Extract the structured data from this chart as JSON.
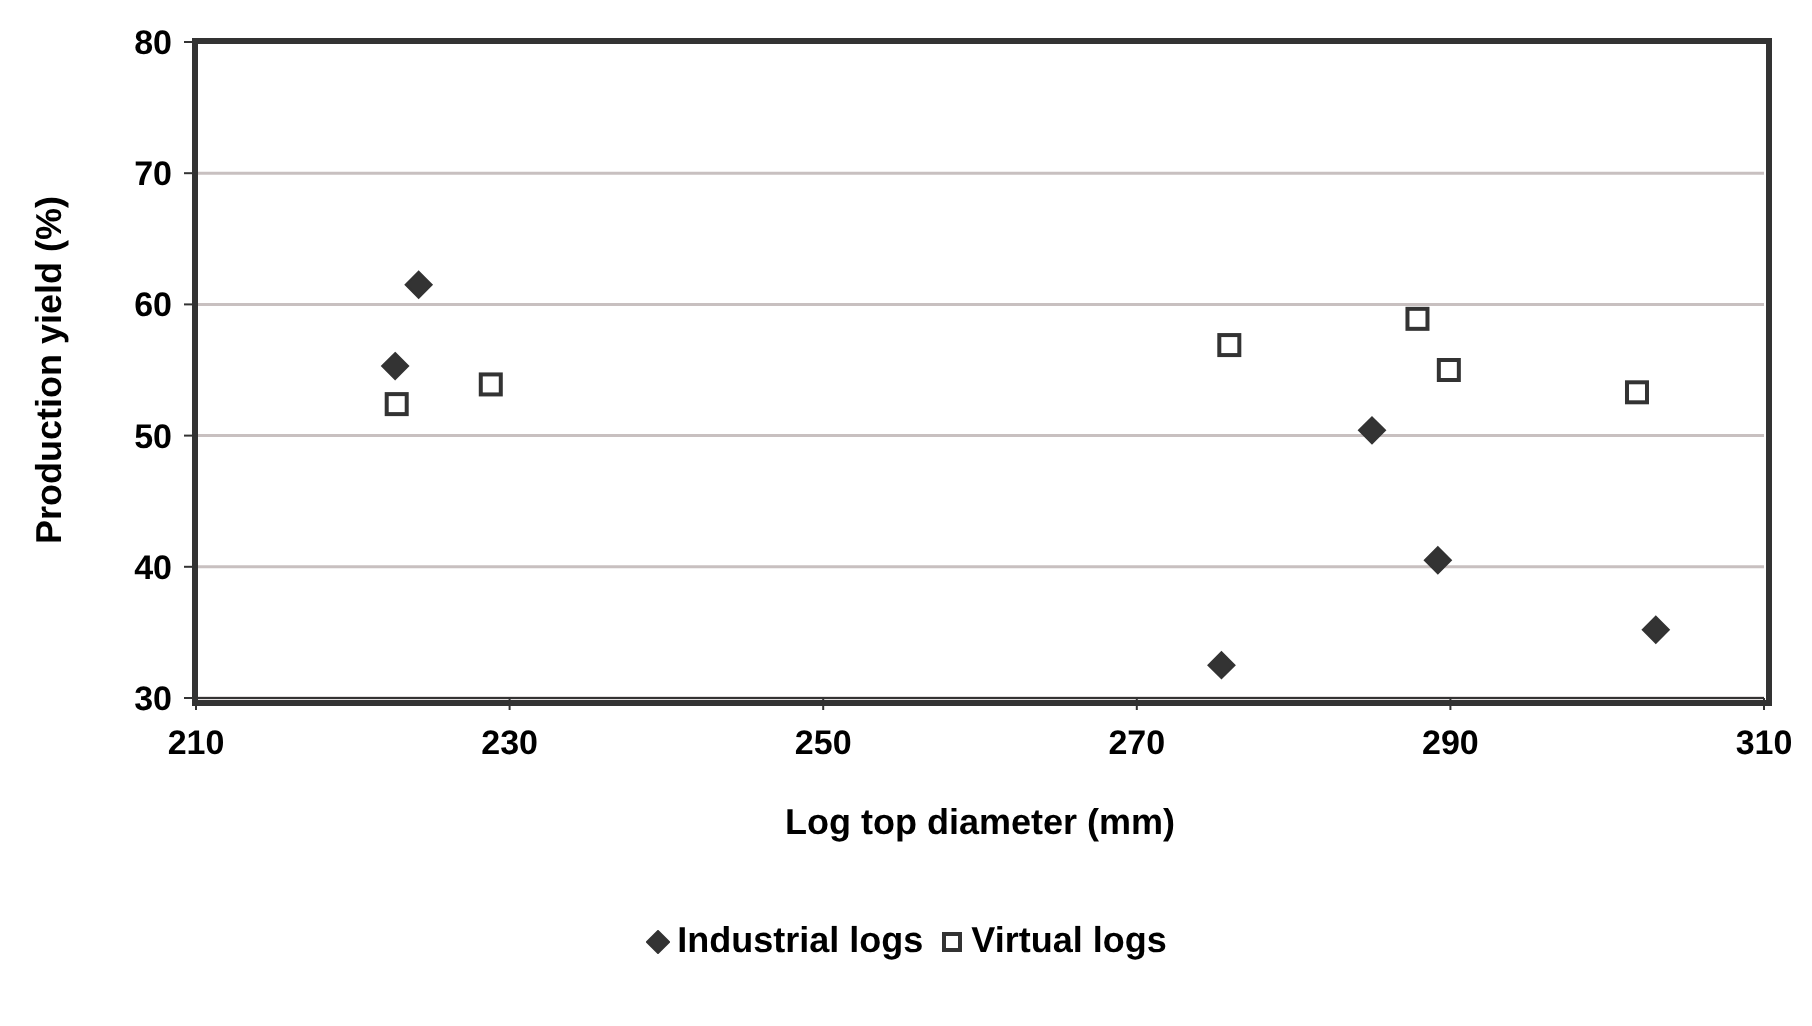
{
  "chart_data": {
    "type": "scatter",
    "xlabel": "Log top diameter (mm)",
    "ylabel": "Production yield (%)",
    "xlim": [
      210,
      310
    ],
    "xticks": [
      210,
      230,
      250,
      270,
      290,
      310
    ],
    "ylim": [
      30,
      80
    ],
    "yticks": [
      30,
      40,
      50,
      60,
      70,
      80
    ],
    "grid": "y",
    "legend": "bottom",
    "series": [
      {
        "name": "Industrial logs",
        "color": "#333333",
        "marker": "diamond",
        "x": [
          222.7,
          224.2,
          275.4,
          285.0,
          289.2,
          303.1
        ],
        "values": [
          55.3,
          61.5,
          32.5,
          50.4,
          40.5,
          35.2
        ]
      },
      {
        "name": "Virtual logs",
        "color": "#333333",
        "marker": "square",
        "x": [
          222.8,
          228.8,
          275.9,
          287.9,
          289.9,
          301.9
        ],
        "values": [
          52.4,
          53.9,
          56.9,
          58.9,
          55.0,
          53.3
        ]
      }
    ]
  }
}
